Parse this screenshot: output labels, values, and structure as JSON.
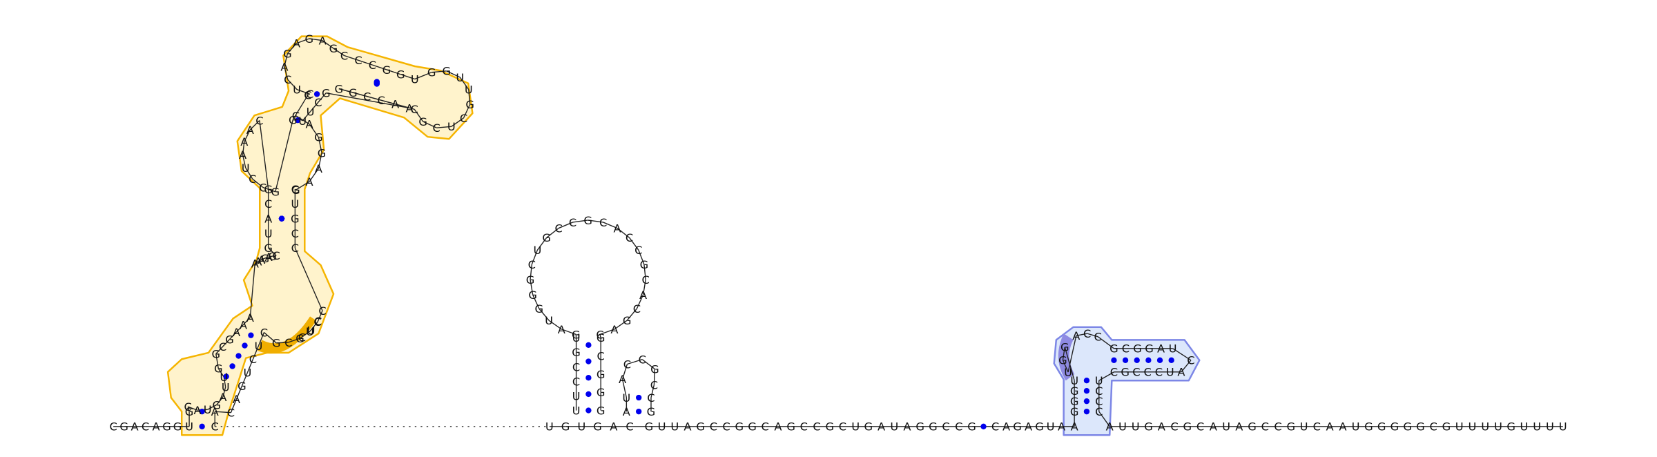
{
  "colors": {
    "highlight_orange": "#F5B400",
    "highlight_orange_fill": "#FFF3CC",
    "highlight_orange_dark": "#F0AE00",
    "highlight_blue": "#7C86E6",
    "highlight_blue_fill": "#DCE7FB",
    "highlight_blue_dark": "#8E8AE2",
    "pair_dot": "#0000EE",
    "base_text": "#111111"
  },
  "structure": {
    "baseline_sequence": "CGACAGGUCAGUGUGACGUUAGCCGGCAGCCGCUGAUAGGCCGCAGAGUAAUUGACGCAUAGCCGUCAAUGGGGGCGUUUUGUUUU",
    "segments": {
      "prefix": "CGACAGG",
      "orange_5p": "U",
      "orange_3p": "C",
      "middle": "UGUGAC",
      "mid_tail": "GUUAGCCGGCAGCCGCUGAUAGGCCG",
      "small_loop": "CAGAGUA",
      "blue_5p": "A",
      "suffix": "AUUGACGCAUAGCCGUCAAUGGGGGCGUUUUGUUUU"
    },
    "orange_domain": {
      "stem1_5p": "G",
      "stem1_3p": "A",
      "loop_bottom": "CAUGAUUG",
      "stem2_5p": "GCGAAA",
      "stem2_3p": "CAGUCUC",
      "big_loop_right": "GCGUCC",
      "multiloop_5p": "AAAGAGC",
      "stem3_5p": "GUACG",
      "stem3_3p": "CUGCC",
      "upper_loop_left": "GCCUAAAC",
      "stem4": "GC",
      "upper_loop_right": "CAGGAAG",
      "top_loop_left": "CUCAGAGAG",
      "stem5_5p": "CCCGGU",
      "stem5_3p": "AACCGG",
      "hairpin": "GGUUGCUCGC",
      "return_junction": "GCUU",
      "orange_run": "CUC"
    },
    "center_hairpin": {
      "stem_5p": "UUCCGU",
      "stem_3p": "GGGCG",
      "loop": "GAUGGGCUGCCGCACCGCACGAC",
      "side_hairpin_stem_5p": "UA",
      "side_hairpin_stem_3p": "CG",
      "side_hairpin_loop": "ACCGC"
    },
    "blue_domain": {
      "stem_5p": "GGGU",
      "stem_3p": "CCCU",
      "loop_left": "UGG",
      "loop_top": "ACC",
      "arm_top": "GCGGAU",
      "arm_bottom": "CGCCCUA",
      "arm_tip": "C"
    }
  }
}
